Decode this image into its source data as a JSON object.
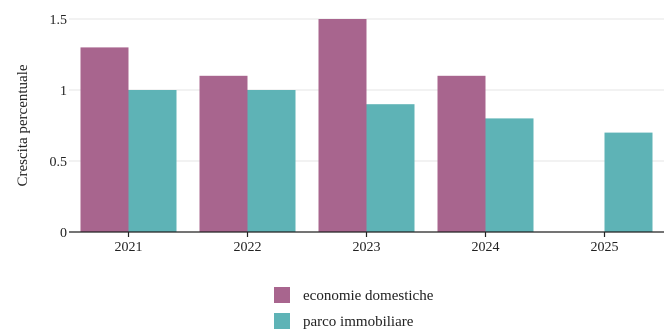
{
  "chart_data": {
    "type": "bar",
    "categories": [
      "2021",
      "2022",
      "2023",
      "2024",
      "2025"
    ],
    "series": [
      {
        "name": "economie domestiche",
        "color": "#a8658e",
        "values": [
          1.3,
          1.1,
          1.5,
          1.1,
          null
        ]
      },
      {
        "name": "parco immobiliare",
        "color": "#5eb3b6",
        "values": [
          1.0,
          1.0,
          0.9,
          0.8,
          0.7
        ]
      }
    ],
    "title": "",
    "xlabel": "",
    "ylabel": "Crescita percentuale",
    "ylim": [
      0,
      1.5
    ],
    "yticks": [
      0,
      0.5,
      1,
      1.5
    ],
    "ytick_labels": [
      "0",
      "0.5",
      "1",
      "1.5"
    ],
    "grid": true,
    "legend_position": "bottom-center"
  }
}
